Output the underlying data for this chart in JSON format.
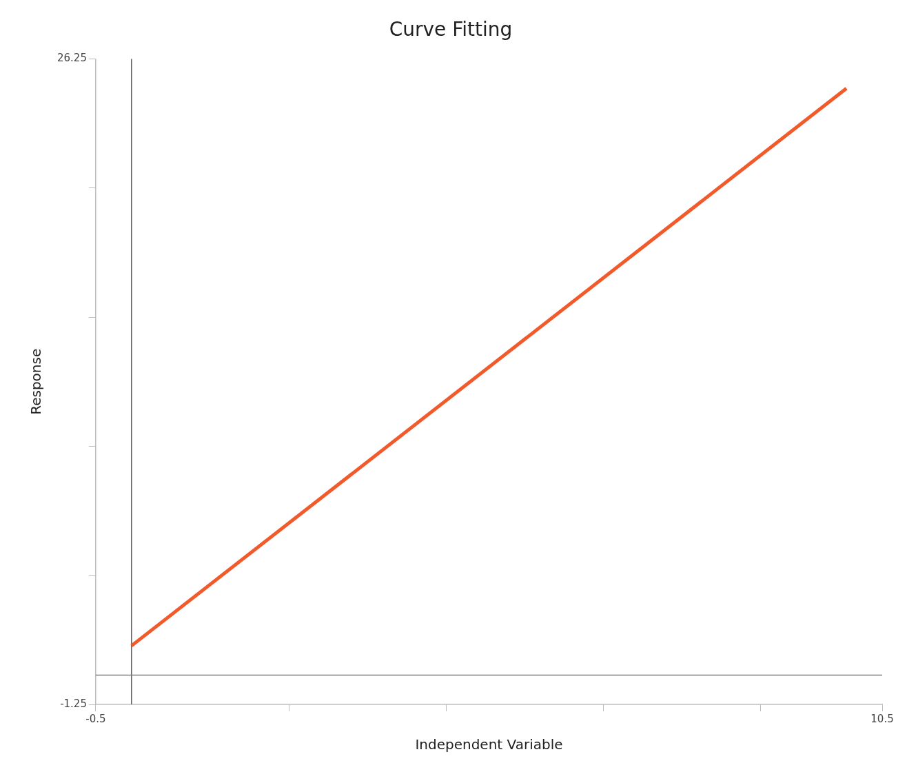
{
  "chart_data": {
    "type": "line",
    "title": "Curve Fitting",
    "xlabel": "Independent Variable",
    "ylabel": "Response",
    "x": [
      0,
      10
    ],
    "series": [
      {
        "color": "#f15a2b",
        "values": [
          1.25,
          25
        ]
      }
    ],
    "xlim": [
      -0.5,
      10.5
    ],
    "xticks": [
      -0.5,
      {
        "value": 2.2,
        "label": null
      },
      {
        "value": 4.4,
        "label": null
      },
      {
        "value": 6.6,
        "label": null
      },
      {
        "value": 8.8,
        "label": null
      },
      10.5
    ],
    "ylim": [
      -1.25,
      26.25
    ],
    "yticks": [
      -1.25,
      {
        "value": 4.25,
        "label": null
      },
      {
        "value": 9.75,
        "label": null
      },
      {
        "value": 15.25,
        "label": null
      },
      {
        "value": 20.75,
        "label": null
      },
      26.25
    ],
    "ref_lines": [
      {
        "axis": "x",
        "value": 0,
        "color": "#5a5a5a"
      },
      {
        "axis": "y",
        "value": 0,
        "color": "#808080"
      }
    ],
    "grid": false,
    "legend": false,
    "marker": "none",
    "line_style": "solid"
  }
}
